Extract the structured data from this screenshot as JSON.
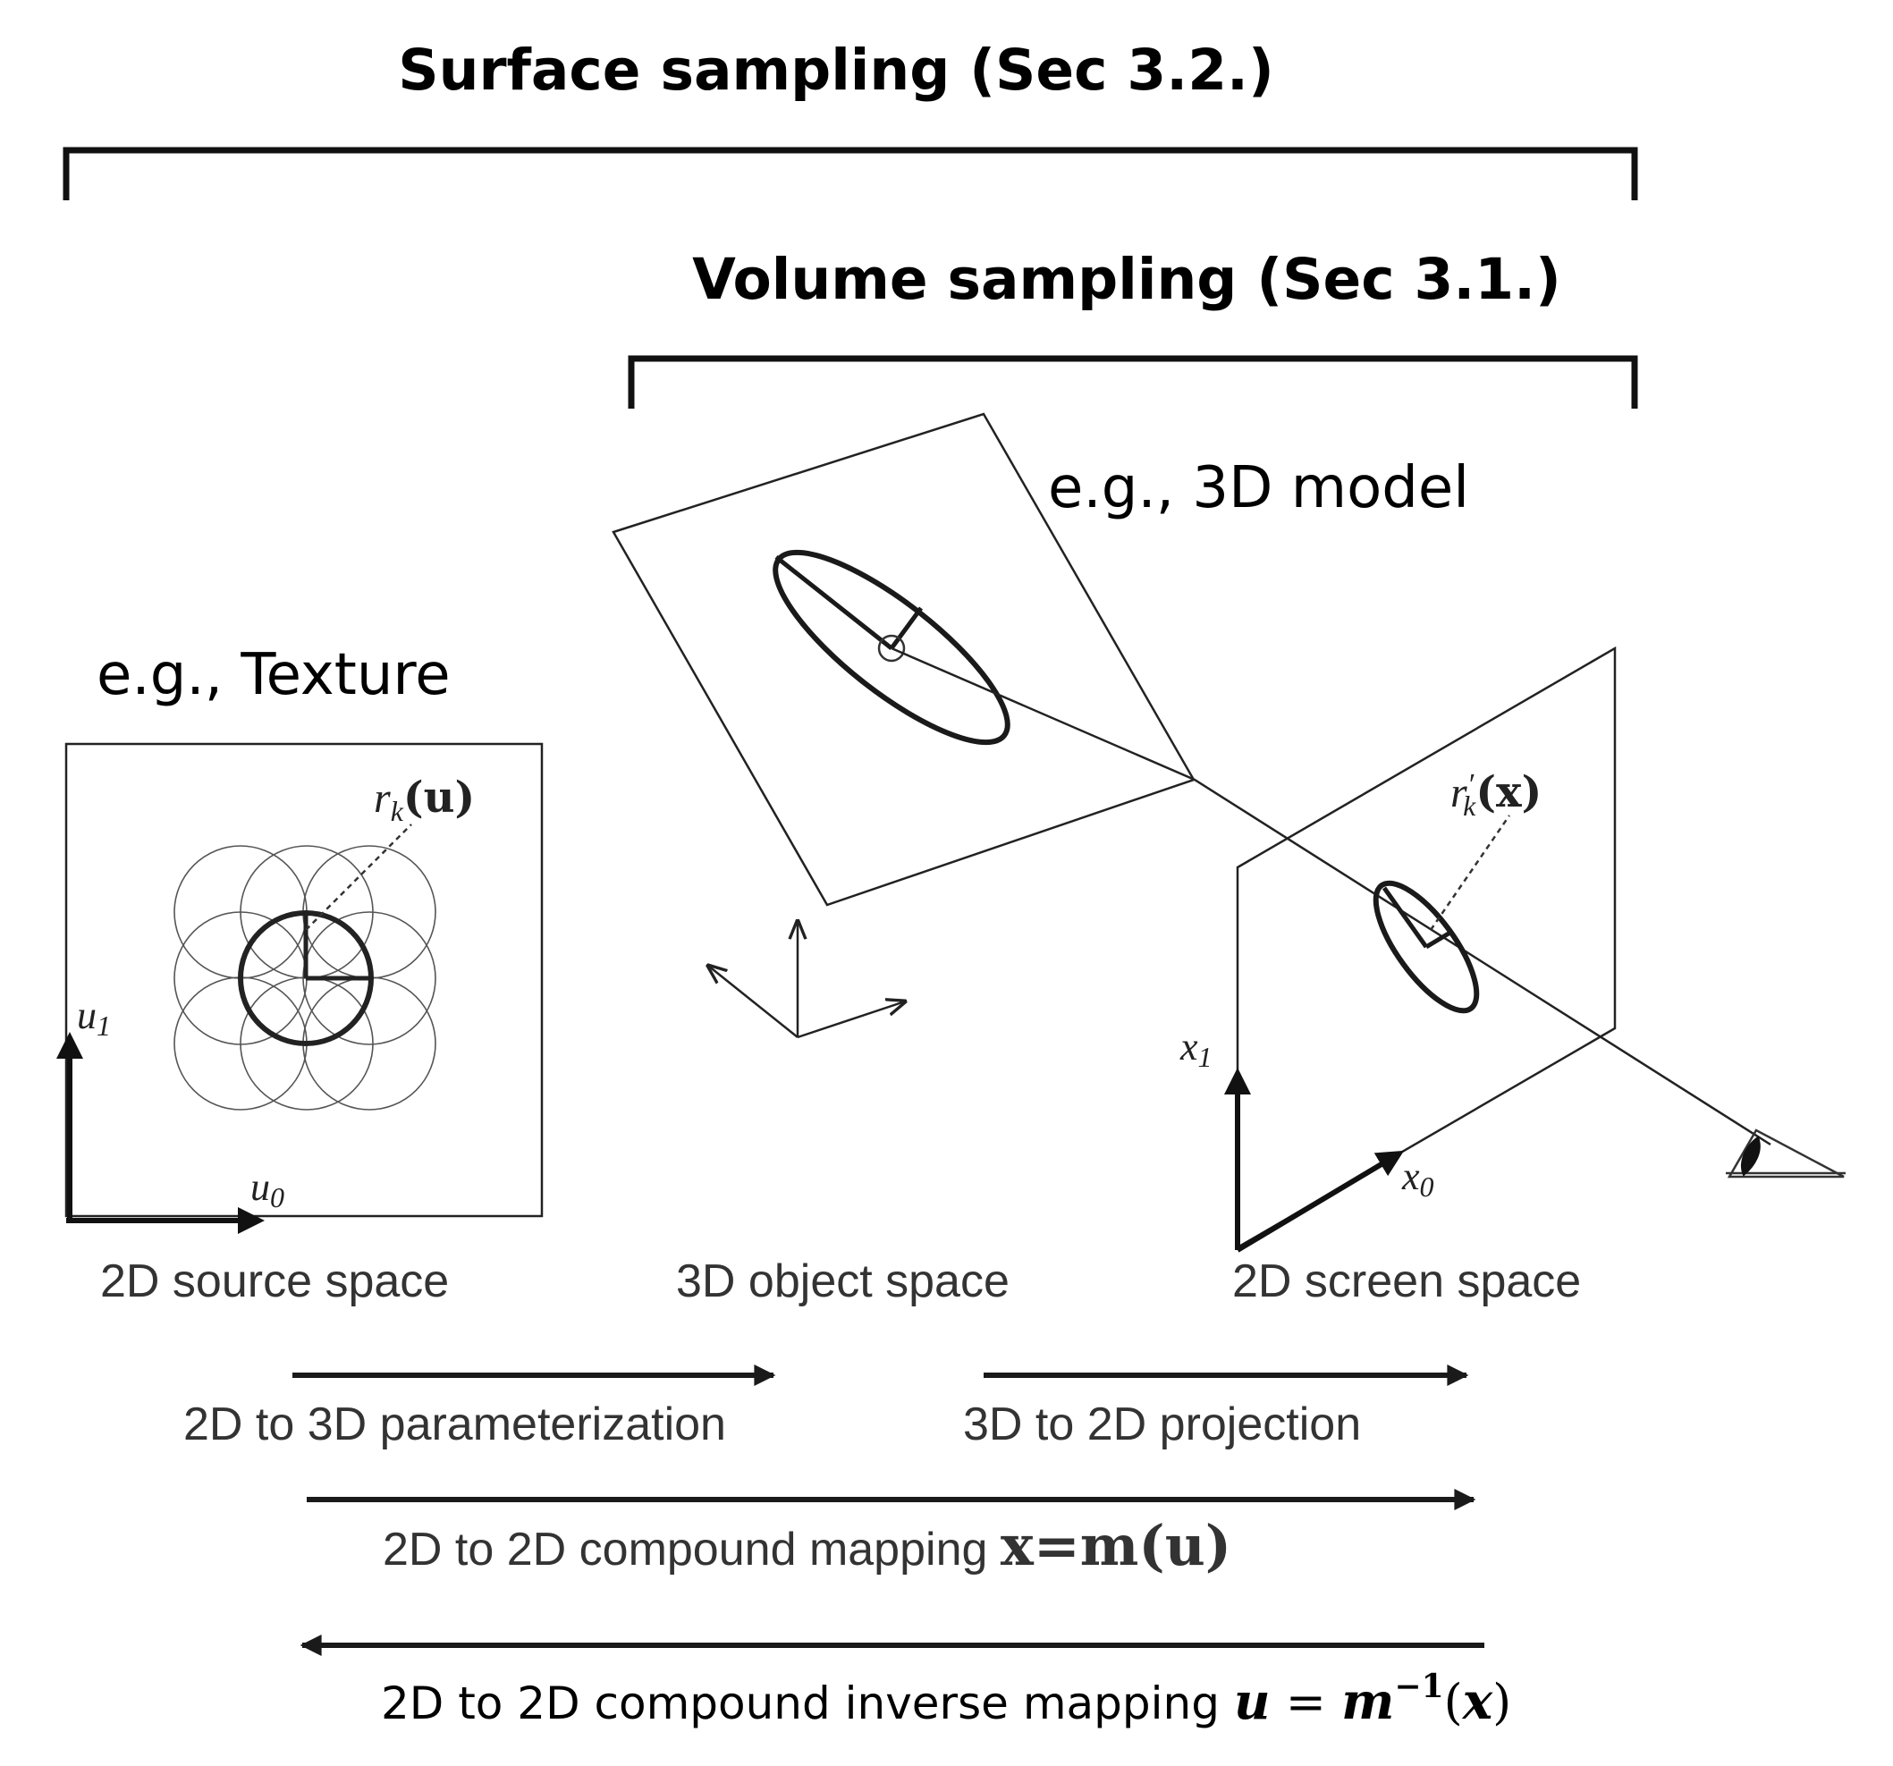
{
  "brackets": {
    "surface": {
      "label": "Surface sampling (Sec 3.2.)"
    },
    "volume": {
      "label": "Volume sampling (Sec 3.1.)"
    }
  },
  "examples": {
    "model": "e.g., 3D model",
    "texture": "e.g., Texture"
  },
  "source_panel": {
    "func_r": "r",
    "func_sub": "k",
    "func_arg": "(u)",
    "axis_u1": "u",
    "axis_u1_sub": "1",
    "axis_u0": "u",
    "axis_u0_sub": "0"
  },
  "screen_panel": {
    "func_r": "r",
    "func_prime": "′",
    "func_sub": "k",
    "func_arg": "(x)",
    "axis_x1": "x",
    "axis_x1_sub": "1",
    "axis_x0": "x",
    "axis_x0_sub": "0"
  },
  "spaces": {
    "source": "2D source space",
    "object": "3D object space",
    "screen": "2D screen space"
  },
  "mappings": {
    "param": "2D to 3D parameterization",
    "proj": "3D to 2D projection",
    "compound_text": "2D to 2D compound mapping ",
    "compound_eq": "x=m(u)",
    "inverse_text": "2D to 2D compound inverse mapping ",
    "inverse_u": "u",
    "inverse_eq_mid": " = ",
    "inverse_m": "m",
    "inverse_exp": "−1",
    "inverse_open": "(",
    "inverse_x": "x",
    "inverse_close": ")"
  }
}
